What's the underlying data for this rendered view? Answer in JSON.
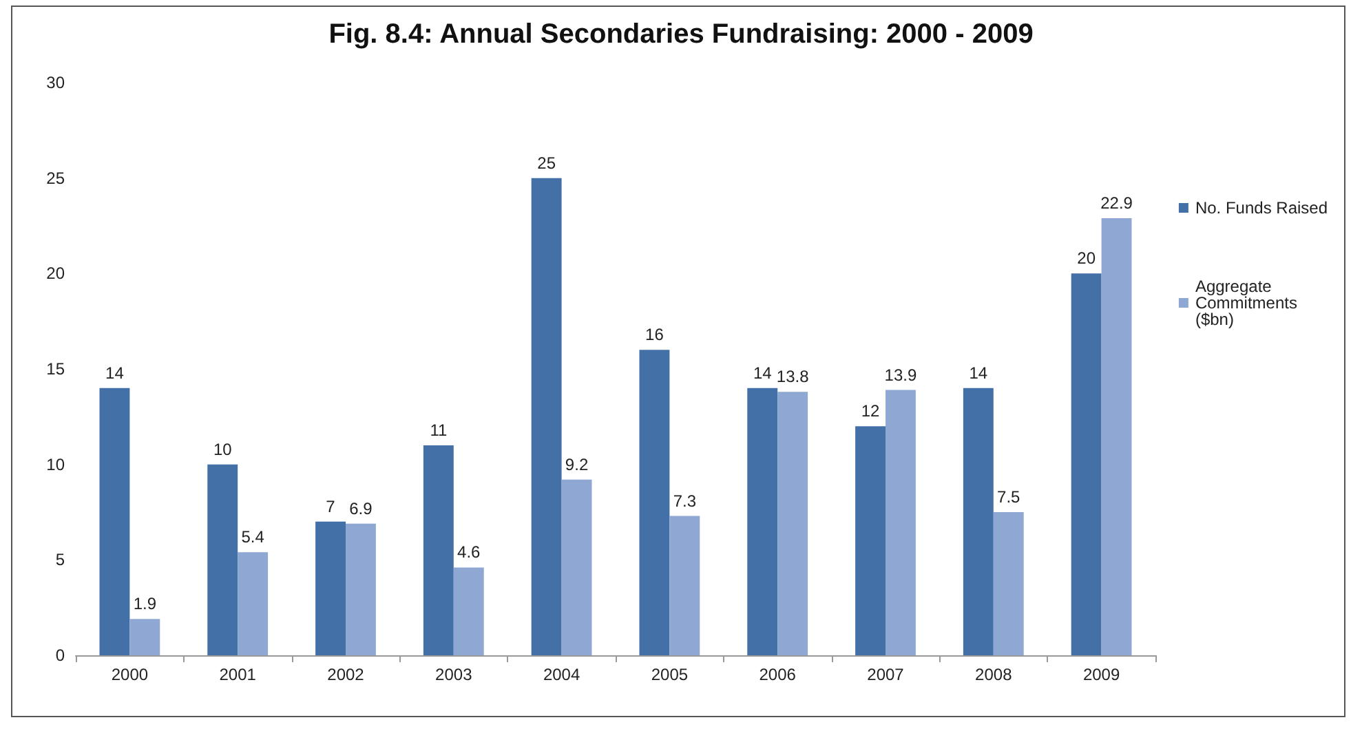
{
  "chart_data": {
    "type": "bar",
    "title": "Fig. 8.4: Annual Secondaries Fundraising: 2000 - 2009",
    "categories": [
      "2000",
      "2001",
      "2002",
      "2003",
      "2004",
      "2005",
      "2006",
      "2007",
      "2008",
      "2009"
    ],
    "series": [
      {
        "name": "No. Funds Raised",
        "color": "#4470a8",
        "values": [
          14,
          10,
          7,
          11,
          25,
          16,
          14,
          12,
          14,
          20
        ]
      },
      {
        "name": "Aggregate Commitments ($bn)",
        "color": "#8ea8d3",
        "values": [
          1.9,
          5.4,
          6.9,
          4.6,
          9.2,
          7.3,
          13.8,
          13.9,
          7.5,
          22.9
        ]
      }
    ],
    "ylim": [
      0,
      30
    ],
    "yticks": [
      0,
      5,
      10,
      15,
      20,
      25,
      30
    ],
    "grid": false,
    "legend": "right",
    "data_labels": true
  }
}
